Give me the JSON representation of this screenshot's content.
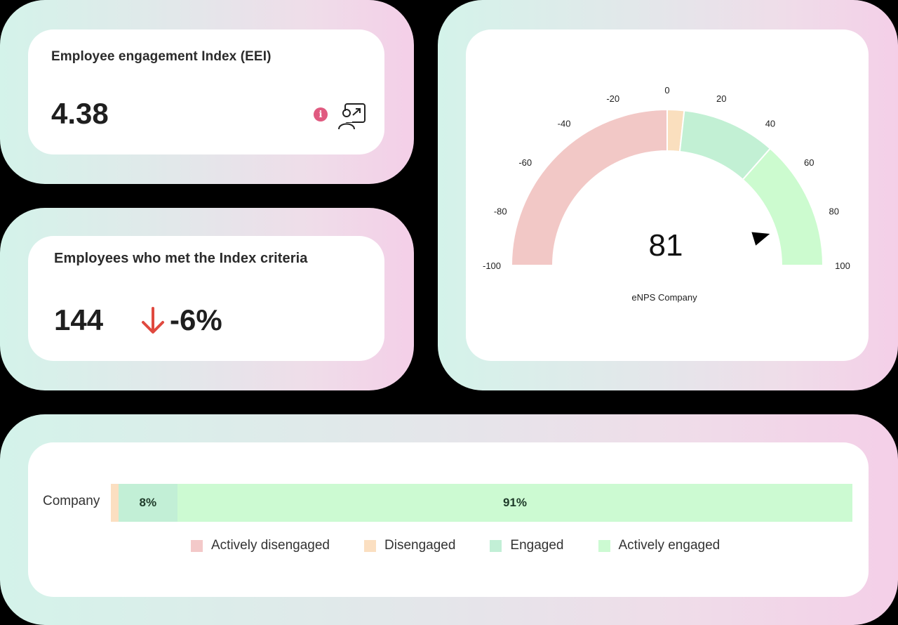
{
  "eei_card": {
    "title": "Employee engagement Index (EEI)",
    "value": "4.38",
    "info_icon": "info-icon",
    "info_glyph": "i",
    "action_icon": "presentation-user-icon",
    "info_color": "#e05a80"
  },
  "index_criteria_card": {
    "title": "Employees who met the Index criteria",
    "value": "144",
    "delta": "-6%",
    "delta_direction": "down",
    "delta_icon": "arrow-down-icon",
    "delta_color": "#e0493f"
  },
  "enps_card": {
    "caption": "eNPS Company",
    "value": "81"
  },
  "distribution_card": {
    "row_label": "Company",
    "legend": [
      {
        "label": "Actively disengaged",
        "color": "#f3c9c9"
      },
      {
        "label": "Disengaged",
        "color": "#fbdfc1"
      },
      {
        "label": "Engaged",
        "color": "#c2efd6"
      },
      {
        "label": "Actively engaged",
        "color": "#ccfad2"
      }
    ]
  },
  "chart_data": [
    {
      "type": "gauge",
      "title": "eNPS Company",
      "value": 81,
      "range": [
        -100,
        100
      ],
      "ticks": [
        -100,
        -80,
        -60,
        -40,
        -20,
        0,
        20,
        40,
        60,
        80,
        100
      ],
      "bands": [
        {
          "from": -100,
          "to": 0,
          "color": "#f2c8c6"
        },
        {
          "from": 0,
          "to": 7,
          "color": "#fadfbe"
        },
        {
          "from": 7,
          "to": 46,
          "color": "#c2f0d4"
        },
        {
          "from": 46,
          "to": 100,
          "color": "#ccfbcf"
        }
      ]
    },
    {
      "type": "bar",
      "orientation": "horizontal",
      "stacked": true,
      "categories": [
        "Company"
      ],
      "series": [
        {
          "name": "Actively disengaged",
          "values": [
            0
          ],
          "color": "#f3c9c9"
        },
        {
          "name": "Disengaged",
          "values": [
            1
          ],
          "color": "#fbdfc1"
        },
        {
          "name": "Engaged",
          "values": [
            8
          ],
          "color": "#c2efd6"
        },
        {
          "name": "Actively engaged",
          "values": [
            91
          ],
          "color": "#ccfad2"
        }
      ],
      "data_labels": [
        "",
        "",
        "8%",
        "91%"
      ],
      "legend_position": "bottom",
      "xlim": [
        0,
        100
      ]
    }
  ]
}
